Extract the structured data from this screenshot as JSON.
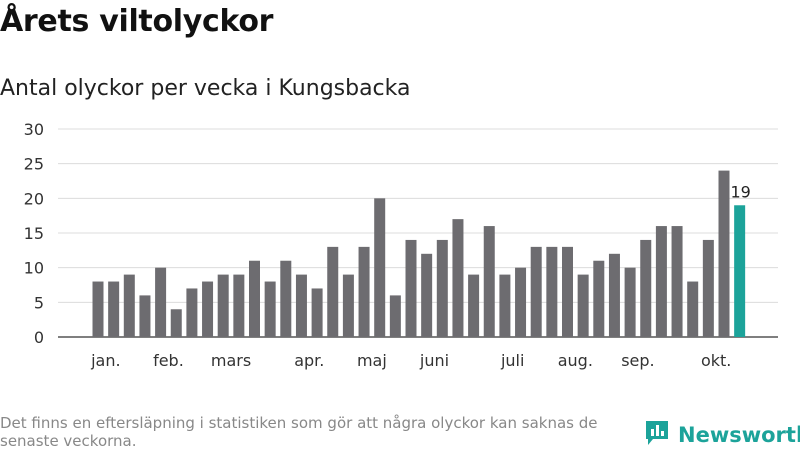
{
  "title": "Årets viltolyckor",
  "subtitle": "Antal olyckor per vecka i Kungsbacka",
  "note": "Det finns en eftersläpning i statistiken som gör att några olyckor kan saknas de senaste veckorna.",
  "brand": {
    "name": "Newsworthy",
    "icon": "bar-chart-logo-icon",
    "color": "#1ca39a"
  },
  "chart_data": {
    "type": "bar",
    "ylim": [
      0,
      30
    ],
    "yticks": [
      0,
      5,
      10,
      15,
      20,
      25,
      30
    ],
    "grid": true,
    "values": [
      8,
      8,
      9,
      6,
      10,
      4,
      7,
      8,
      9,
      9,
      11,
      8,
      11,
      9,
      7,
      13,
      9,
      13,
      20,
      6,
      14,
      12,
      14,
      17,
      9,
      16,
      9,
      10,
      13,
      13,
      13,
      9,
      11,
      12,
      10,
      14,
      16,
      16,
      8,
      14,
      24,
      19
    ],
    "bar_color": "#6d6c70",
    "highlight_color": "#1ca39a",
    "highlight_index": 41,
    "highlight_label": "19",
    "month_labels": [
      {
        "label": "jan.",
        "bar_index": 0.5
      },
      {
        "label": "feb.",
        "bar_index": 4.5
      },
      {
        "label": "mars",
        "bar_index": 8.5
      },
      {
        "label": "apr.",
        "bar_index": 13.5
      },
      {
        "label": "maj",
        "bar_index": 17.5
      },
      {
        "label": "juni",
        "bar_index": 21.5
      },
      {
        "label": "juli",
        "bar_index": 26.5
      },
      {
        "label": "aug.",
        "bar_index": 30.5
      },
      {
        "label": "sep.",
        "bar_index": 34.5
      },
      {
        "label": "okt.",
        "bar_index": 39.5
      }
    ]
  }
}
